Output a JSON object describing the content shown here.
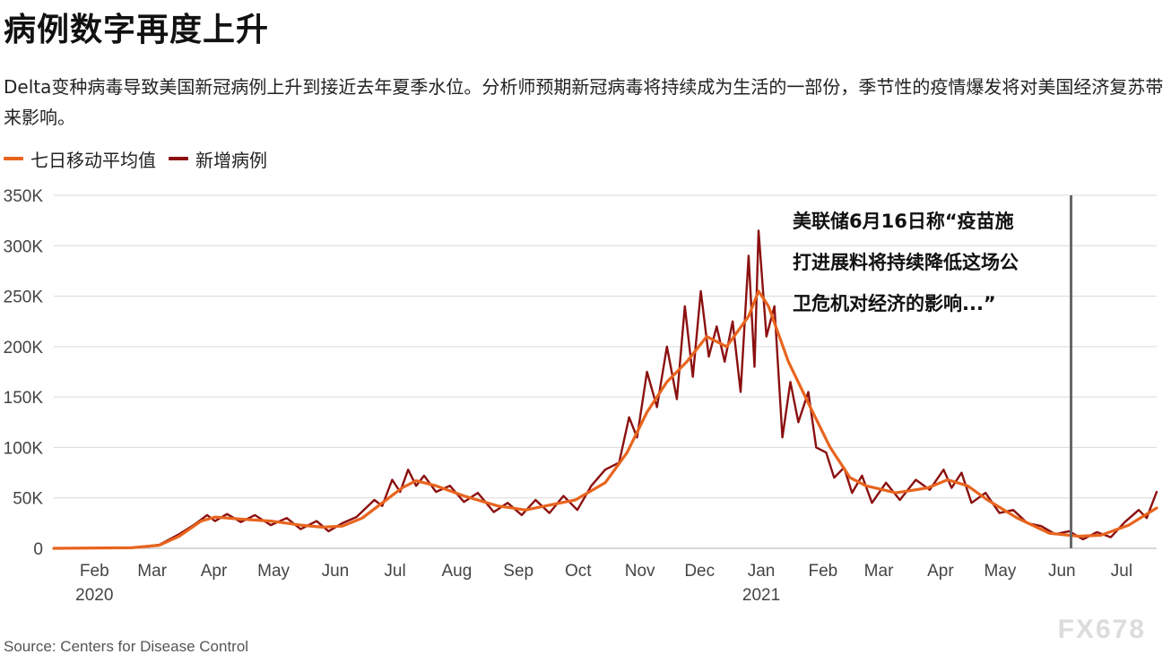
{
  "title": "病例数字再度上升",
  "subtitle": "Delta变种病毒导致美国新冠病例上升到接近去年夏季水位。分析师预期新冠病毒将持续成为生活的一部份，季节性的疫情爆发将对美国经济复苏带来影响。",
  "source": "Source: Centers for Disease Control",
  "watermark": "FX678",
  "legend": [
    {
      "label": "七日移动平均值",
      "color": "#e8641e"
    },
    {
      "label": "新增病例",
      "color": "#8b1010"
    }
  ],
  "annotation": {
    "lines": [
      "美联储6月16日称“疫苗施",
      "打进展料将持续降低这场公",
      "卫危机对经济的影响...”"
    ],
    "date": "2021-06-16"
  },
  "chart_data": {
    "type": "line",
    "x_start": "2020-01-22",
    "x_end": "2021-07-29",
    "ylim": [
      0,
      350000
    ],
    "yticks": [
      0,
      50000,
      100000,
      150000,
      200000,
      250000,
      300000,
      350000
    ],
    "ytick_labels": [
      "0",
      "50K",
      "100K",
      "150K",
      "200K",
      "250K",
      "300K",
      "350K"
    ],
    "xticks": [
      {
        "date": "2020-02-15",
        "label": "Feb",
        "year": "2020"
      },
      {
        "date": "2020-03-15",
        "label": "Mar",
        "year": ""
      },
      {
        "date": "2020-04-15",
        "label": "Apr",
        "year": ""
      },
      {
        "date": "2020-05-15",
        "label": "May",
        "year": ""
      },
      {
        "date": "2020-06-15",
        "label": "Jun",
        "year": ""
      },
      {
        "date": "2020-07-15",
        "label": "Jul",
        "year": ""
      },
      {
        "date": "2020-08-15",
        "label": "Aug",
        "year": ""
      },
      {
        "date": "2020-09-15",
        "label": "Sep",
        "year": ""
      },
      {
        "date": "2020-10-15",
        "label": "Oct",
        "year": ""
      },
      {
        "date": "2020-11-15",
        "label": "Nov",
        "year": ""
      },
      {
        "date": "2020-12-15",
        "label": "Dec",
        "year": ""
      },
      {
        "date": "2021-01-15",
        "label": "Jan",
        "year": "2021"
      },
      {
        "date": "2021-02-15",
        "label": "Feb",
        "year": ""
      },
      {
        "date": "2021-03-15",
        "label": "Mar",
        "year": ""
      },
      {
        "date": "2021-04-15",
        "label": "Apr",
        "year": ""
      },
      {
        "date": "2021-05-15",
        "label": "May",
        "year": ""
      },
      {
        "date": "2021-06-15",
        "label": "Jun",
        "year": ""
      },
      {
        "date": "2021-07-15",
        "label": "Jul",
        "year": ""
      }
    ],
    "grid": true,
    "legend_position": "top-left",
    "series": [
      {
        "name": "七日移动平均值",
        "color": "#e8641e",
        "points": [
          [
            "2020-01-22",
            0
          ],
          [
            "2020-03-01",
            500
          ],
          [
            "2020-03-15",
            3000
          ],
          [
            "2020-03-25",
            12000
          ],
          [
            "2020-04-05",
            27000
          ],
          [
            "2020-04-12",
            31000
          ],
          [
            "2020-04-25",
            29000
          ],
          [
            "2020-05-10",
            27000
          ],
          [
            "2020-05-25",
            23000
          ],
          [
            "2020-06-05",
            21000
          ],
          [
            "2020-06-15",
            22000
          ],
          [
            "2020-06-25",
            30000
          ],
          [
            "2020-07-05",
            45000
          ],
          [
            "2020-07-15",
            60000
          ],
          [
            "2020-07-22",
            67000
          ],
          [
            "2020-08-01",
            62000
          ],
          [
            "2020-08-15",
            52000
          ],
          [
            "2020-09-01",
            42000
          ],
          [
            "2020-09-15",
            38000
          ],
          [
            "2020-09-25",
            42000
          ],
          [
            "2020-10-10",
            48000
          ],
          [
            "2020-10-25",
            65000
          ],
          [
            "2020-11-05",
            95000
          ],
          [
            "2020-11-15",
            135000
          ],
          [
            "2020-11-25",
            165000
          ],
          [
            "2020-12-05",
            185000
          ],
          [
            "2020-12-15",
            210000
          ],
          [
            "2020-12-25",
            200000
          ],
          [
            "2021-01-05",
            230000
          ],
          [
            "2021-01-10",
            255000
          ],
          [
            "2021-01-15",
            240000
          ],
          [
            "2021-01-25",
            185000
          ],
          [
            "2021-02-05",
            140000
          ],
          [
            "2021-02-15",
            100000
          ],
          [
            "2021-02-25",
            70000
          ],
          [
            "2021-03-05",
            62000
          ],
          [
            "2021-03-20",
            55000
          ],
          [
            "2021-04-05",
            60000
          ],
          [
            "2021-04-15",
            68000
          ],
          [
            "2021-04-25",
            62000
          ],
          [
            "2021-05-05",
            48000
          ],
          [
            "2021-05-20",
            30000
          ],
          [
            "2021-06-05",
            15000
          ],
          [
            "2021-06-20",
            12000
          ],
          [
            "2021-07-01",
            13000
          ],
          [
            "2021-07-15",
            23000
          ],
          [
            "2021-07-29",
            40000
          ]
        ]
      },
      {
        "name": "新增病例",
        "color": "#8b1010",
        "points": [
          [
            "2020-01-22",
            0
          ],
          [
            "2020-03-01",
            500
          ],
          [
            "2020-03-15",
            3500
          ],
          [
            "2020-03-25",
            14000
          ],
          [
            "2020-04-02",
            24000
          ],
          [
            "2020-04-08",
            33000
          ],
          [
            "2020-04-12",
            27000
          ],
          [
            "2020-04-18",
            34000
          ],
          [
            "2020-04-25",
            26000
          ],
          [
            "2020-05-02",
            33000
          ],
          [
            "2020-05-10",
            23000
          ],
          [
            "2020-05-18",
            30000
          ],
          [
            "2020-05-25",
            19000
          ],
          [
            "2020-06-02",
            27000
          ],
          [
            "2020-06-08",
            17000
          ],
          [
            "2020-06-15",
            25000
          ],
          [
            "2020-06-22",
            31000
          ],
          [
            "2020-07-01",
            48000
          ],
          [
            "2020-07-05",
            42000
          ],
          [
            "2020-07-10",
            68000
          ],
          [
            "2020-07-14",
            56000
          ],
          [
            "2020-07-18",
            78000
          ],
          [
            "2020-07-22",
            62000
          ],
          [
            "2020-07-26",
            72000
          ],
          [
            "2020-08-01",
            56000
          ],
          [
            "2020-08-08",
            62000
          ],
          [
            "2020-08-15",
            46000
          ],
          [
            "2020-08-22",
            55000
          ],
          [
            "2020-08-30",
            36000
          ],
          [
            "2020-09-06",
            45000
          ],
          [
            "2020-09-13",
            33000
          ],
          [
            "2020-09-20",
            48000
          ],
          [
            "2020-09-27",
            35000
          ],
          [
            "2020-10-04",
            52000
          ],
          [
            "2020-10-11",
            38000
          ],
          [
            "2020-10-18",
            62000
          ],
          [
            "2020-10-25",
            78000
          ],
          [
            "2020-11-01",
            85000
          ],
          [
            "2020-11-06",
            130000
          ],
          [
            "2020-11-10",
            110000
          ],
          [
            "2020-11-15",
            175000
          ],
          [
            "2020-11-20",
            140000
          ],
          [
            "2020-11-25",
            200000
          ],
          [
            "2020-11-30",
            148000
          ],
          [
            "2020-12-04",
            240000
          ],
          [
            "2020-12-08",
            170000
          ],
          [
            "2020-12-12",
            255000
          ],
          [
            "2020-12-16",
            190000
          ],
          [
            "2020-12-20",
            220000
          ],
          [
            "2020-12-24",
            185000
          ],
          [
            "2020-12-28",
            225000
          ],
          [
            "2021-01-01",
            155000
          ],
          [
            "2021-01-05",
            290000
          ],
          [
            "2021-01-08",
            180000
          ],
          [
            "2021-01-10",
            315000
          ],
          [
            "2021-01-14",
            210000
          ],
          [
            "2021-01-18",
            240000
          ],
          [
            "2021-01-22",
            110000
          ],
          [
            "2021-01-26",
            165000
          ],
          [
            "2021-01-30",
            125000
          ],
          [
            "2021-02-04",
            155000
          ],
          [
            "2021-02-08",
            100000
          ],
          [
            "2021-02-13",
            95000
          ],
          [
            "2021-02-17",
            70000
          ],
          [
            "2021-02-22",
            80000
          ],
          [
            "2021-02-26",
            55000
          ],
          [
            "2021-03-03",
            72000
          ],
          [
            "2021-03-08",
            45000
          ],
          [
            "2021-03-15",
            65000
          ],
          [
            "2021-03-22",
            48000
          ],
          [
            "2021-03-30",
            68000
          ],
          [
            "2021-04-06",
            58000
          ],
          [
            "2021-04-13",
            78000
          ],
          [
            "2021-04-17",
            60000
          ],
          [
            "2021-04-22",
            75000
          ],
          [
            "2021-04-27",
            45000
          ],
          [
            "2021-05-04",
            55000
          ],
          [
            "2021-05-11",
            35000
          ],
          [
            "2021-05-18",
            38000
          ],
          [
            "2021-05-25",
            25000
          ],
          [
            "2021-06-01",
            22000
          ],
          [
            "2021-06-08",
            14000
          ],
          [
            "2021-06-15",
            17000
          ],
          [
            "2021-06-22",
            9000
          ],
          [
            "2021-06-29",
            16000
          ],
          [
            "2021-07-06",
            11000
          ],
          [
            "2021-07-13",
            26000
          ],
          [
            "2021-07-20",
            38000
          ],
          [
            "2021-07-24",
            30000
          ],
          [
            "2021-07-29",
            56000
          ]
        ]
      }
    ]
  }
}
